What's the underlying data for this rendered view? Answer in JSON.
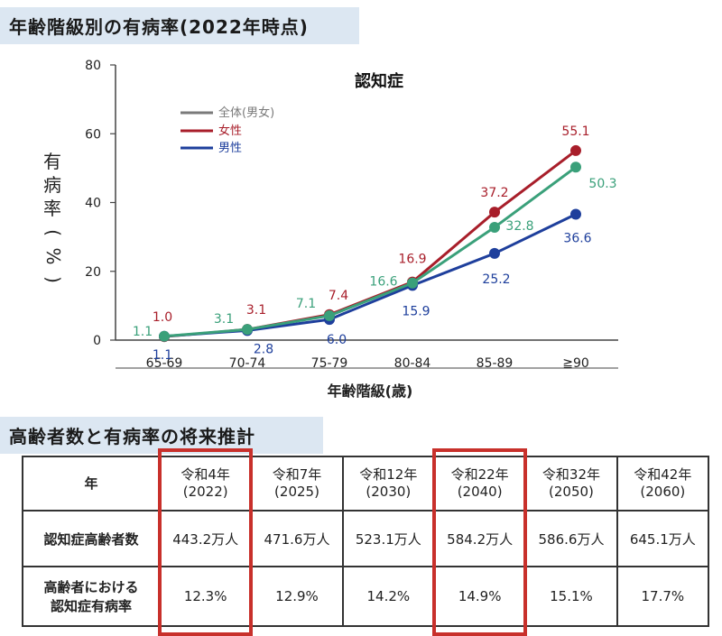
{
  "section1_title": "年齢階級別の有病率(2022年時点)",
  "section2_title": "高齢者数と有病率の将来推計",
  "chart_data": {
    "type": "line",
    "title": "認知症",
    "ylabel": "有病率(%)",
    "xlabel": "年齢階級(歳)",
    "ylim": [
      0,
      80
    ],
    "yticks": [
      "0",
      "20",
      "40",
      "60",
      "80"
    ],
    "categories": [
      "65-69",
      "70-74",
      "75-79",
      "80-84",
      "85-89",
      "≧90"
    ],
    "legend_position": "top-left",
    "series": [
      {
        "name": "全体(男女)",
        "color": "#3aa07a",
        "values": [
          1.1,
          3.1,
          7.1,
          16.6,
          32.8,
          50.3
        ],
        "labels": [
          "1.1",
          "3.1",
          "7.1",
          "16.6",
          "32.8",
          "50.3"
        ]
      },
      {
        "name": "女性",
        "color": "#a81e2a",
        "values": [
          1.0,
          3.1,
          7.4,
          16.9,
          37.2,
          55.1
        ],
        "labels": [
          "1.0",
          "3.1",
          "7.4",
          "16.9",
          "37.2",
          "55.1"
        ]
      },
      {
        "name": "男性",
        "color": "#1e3f9c",
        "values": [
          1.1,
          2.8,
          6.0,
          15.9,
          25.2,
          36.6
        ],
        "labels": [
          "1.1",
          "2.8",
          "6.0",
          "15.9",
          "25.2",
          "36.6"
        ]
      }
    ],
    "legend_colors": {
      "全体(男女)": "#7a7a7a",
      "女性": "#a81e2a",
      "男性": "#1e3f9c"
    }
  },
  "table": {
    "corner": "年",
    "headers": [
      {
        "label": "令和4年",
        "year": "(2022)",
        "highlight": true
      },
      {
        "label": "令和7年",
        "year": "(2025)",
        "highlight": false
      },
      {
        "label": "令和12年",
        "year": "(2030)",
        "highlight": false
      },
      {
        "label": "令和22年",
        "year": "(2040)",
        "highlight": true
      },
      {
        "label": "令和32年",
        "year": "(2050)",
        "highlight": false
      },
      {
        "label": "令和42年",
        "year": "(2060)",
        "highlight": false
      }
    ],
    "row1_head": "認知症高齢者数",
    "row1": [
      "443.2万人",
      "471.6万人",
      "523.1万人",
      "584.2万人",
      "586.6万人",
      "645.1万人"
    ],
    "row2_head_line1": "高齢者における",
    "row2_head_line2": "認知症有病率",
    "row2": [
      "12.3%",
      "12.9%",
      "14.2%",
      "14.9%",
      "15.1%",
      "17.7%"
    ],
    "highlight_color": "#c8302b"
  }
}
